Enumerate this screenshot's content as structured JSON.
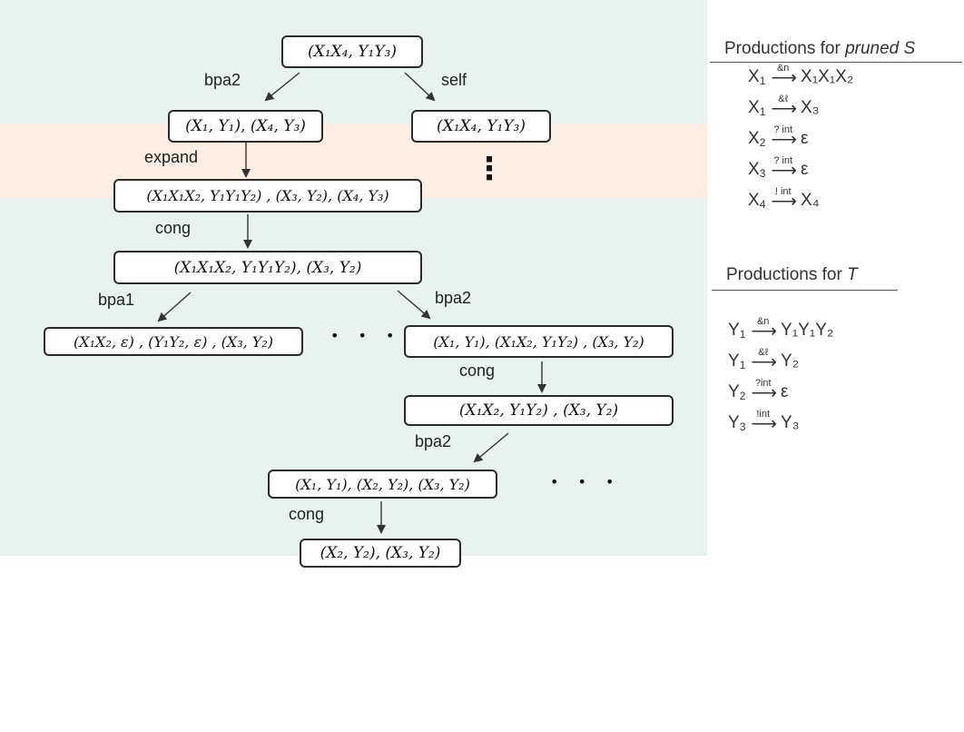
{
  "tree": {
    "nodes": [
      {
        "id": "root",
        "text": "(X₁X₄, Y₁Y₃)"
      },
      {
        "id": "n-bpa2-left",
        "text": "(X₁, Y₁), (X₄, Y₃)"
      },
      {
        "id": "n-self-right",
        "text": "(X₁X₄, Y₁Y₃)"
      },
      {
        "id": "n-expand",
        "text": "(X₁X₁X₂, Y₁Y₁Y₂) , (X₃, Y₂), (X₄, Y₃)"
      },
      {
        "id": "n-cong1",
        "text": "(X₁X₁X₂, Y₁Y₁Y₂), (X₃, Y₂)"
      },
      {
        "id": "n-bpa1",
        "text": "(X₁X₂, ε) , (Y₁Y₂, ε) , (X₃, Y₂)"
      },
      {
        "id": "n-bpa2-right",
        "text": "(X₁, Y₁), (X₁X₂, Y₁Y₂) , (X₃, Y₂)"
      },
      {
        "id": "n-cong2",
        "text": "(X₁X₂, Y₁Y₂) , (X₃, Y₂)"
      },
      {
        "id": "n-bpa2-lower",
        "text": "(X₁, Y₁), (X₂, Y₂), (X₃, Y₂)"
      },
      {
        "id": "n-cong3",
        "text": "(X₂, Y₂), (X₃, Y₂)"
      }
    ],
    "edge_labels": {
      "bpa2_top": "bpa2",
      "self": "self",
      "expand": "expand",
      "cong_1": "cong",
      "bpa1": "bpa1",
      "bpa2_mid": "bpa2",
      "cong_2": "cong",
      "bpa2_low": "bpa2",
      "cong_3": "cong"
    },
    "ellipses": {
      "vertical": "⋮",
      "mid": "• • •",
      "low": "• • •"
    }
  },
  "panel_s": {
    "title_prefix": "Productions for ",
    "title_italic": "pruned S",
    "rules": [
      {
        "lhs": "X",
        "lhs_sub": "1",
        "label": "&n",
        "rhs": "X₁X₁X₂"
      },
      {
        "lhs": "X",
        "lhs_sub": "1",
        "label": "&ℓ",
        "rhs": "X₃"
      },
      {
        "lhs": "X",
        "lhs_sub": "2",
        "label": "? int",
        "rhs": "ε"
      },
      {
        "lhs": "X",
        "lhs_sub": "3",
        "label": "? int",
        "rhs": "ε"
      },
      {
        "lhs": "X",
        "lhs_sub": "4",
        "label": "! int",
        "rhs": "X₄"
      }
    ]
  },
  "panel_t": {
    "title_prefix": "Productions for ",
    "title_italic": "T",
    "rules": [
      {
        "lhs": "Y",
        "lhs_sub": "1",
        "label": "&n",
        "rhs": "Y₁Y₁Y₂"
      },
      {
        "lhs": "Y",
        "lhs_sub": "1",
        "label": "&ℓ",
        "rhs": "Y₂"
      },
      {
        "lhs": "Y",
        "lhs_sub": "2",
        "label": "?int",
        "rhs": "ε"
      },
      {
        "lhs": "Y",
        "lhs_sub": "3",
        "label": "!int",
        "rhs": "Y₃"
      }
    ]
  }
}
